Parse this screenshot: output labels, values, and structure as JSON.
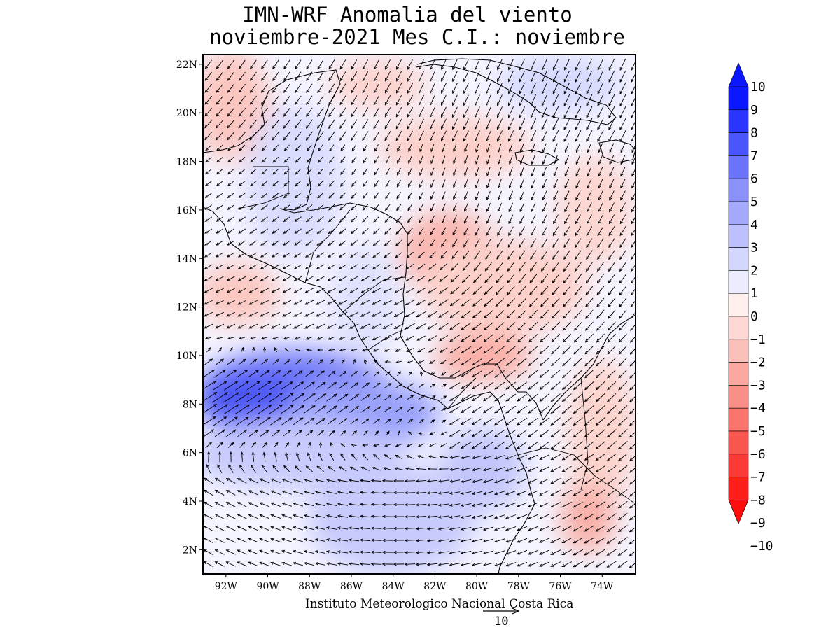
{
  "title_line1": "IMN-WRF Anomalia del viento",
  "title_line2": "noviembre-2021 Mes C.I.: noviembre",
  "footer_text": "Instituto Meteorologico Nacional Costa Rica",
  "reference_vector_label": "10",
  "lat_labels": [
    "2N",
    "4N",
    "6N",
    "8N",
    "10N",
    "12N",
    "14N",
    "16N",
    "18N",
    "20N",
    "22N"
  ],
  "lat_values": [
    2,
    4,
    6,
    8,
    10,
    12,
    14,
    16,
    18,
    20,
    22
  ],
  "lon_labels": [
    "92W",
    "90W",
    "88W",
    "86W",
    "84W",
    "82W",
    "80W",
    "78W",
    "76W",
    "74W"
  ],
  "lon_values": [
    -92,
    -90,
    -88,
    -86,
    -84,
    -82,
    -80,
    -78,
    -76,
    -74
  ],
  "map_extent": {
    "lon_min": -93.1,
    "lon_max": -72.4,
    "lat_min": 1,
    "lat_max": 22.4
  },
  "colorbar": {
    "tick_labels": [
      "10",
      "9",
      "8",
      "7",
      "6",
      "5",
      "4",
      "3",
      "2",
      "1",
      "0",
      "−1",
      "−2",
      "−3",
      "−4",
      "−5",
      "−6",
      "−7",
      "−8",
      "−9",
      "−10"
    ],
    "colors": [
      "#0a17ff",
      "#2a36ff",
      "#4a55fb",
      "#6a73fa",
      "#8a91fa",
      "#a3a9fb",
      "#bcc0fc",
      "#d4d7fd",
      "#ebecfe",
      "#fff0ee",
      "#fdd8d4",
      "#fcc0ba",
      "#fba8a1",
      "#fa8f88",
      "#fa736c",
      "#fa5650",
      "#fb3935",
      "#fc1e1b"
    ],
    "top_arrow_color": "#0a17ff",
    "bottom_arrow_color": "#ff0d0d"
  },
  "colors": {
    "land_boundary": "#000000",
    "vector": "#000000",
    "neutral": "#f4f4ff"
  }
}
